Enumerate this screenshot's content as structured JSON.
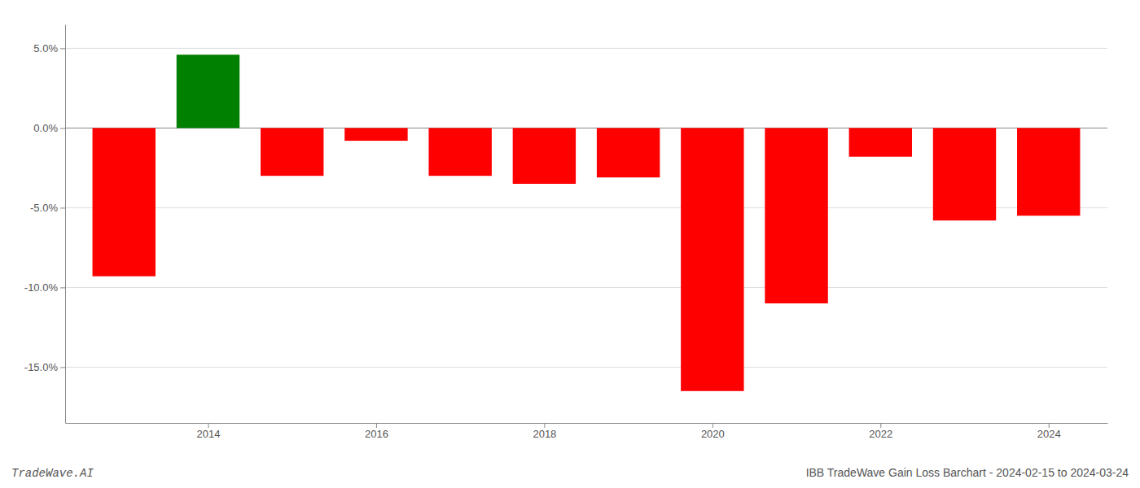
{
  "chart_data": {
    "type": "bar",
    "x": [
      2013,
      2014,
      2015,
      2016,
      2017,
      2018,
      2019,
      2020,
      2021,
      2022,
      2023,
      2024
    ],
    "values": [
      -9.3,
      4.6,
      -3.0,
      -0.8,
      -3.0,
      -3.5,
      -3.1,
      -16.5,
      -11.0,
      -1.8,
      -5.8,
      -5.5
    ],
    "colors": [
      "#ff0000",
      "#008000",
      "#ff0000",
      "#ff0000",
      "#ff0000",
      "#ff0000",
      "#ff0000",
      "#ff0000",
      "#ff0000",
      "#ff0000",
      "#ff0000",
      "#ff0000"
    ],
    "xlim": [
      2012.3,
      2024.7
    ],
    "xticks": [
      2014,
      2016,
      2018,
      2020,
      2022,
      2024
    ],
    "ylim": [
      -18.5,
      6.5
    ],
    "yticks": [
      {
        "value": 5.0,
        "label": "5.0%"
      },
      {
        "value": 0.0,
        "label": "0.0%"
      },
      {
        "value": -5.0,
        "label": "-5.0%"
      },
      {
        "value": -10.0,
        "label": "-10.0%"
      },
      {
        "value": -15.0,
        "label": "-15.0%"
      }
    ],
    "grid": true,
    "annotations": [
      "TradeWave.AI",
      "IBB TradeWave Gain Loss Barchart - 2024-02-15 to 2024-03-24"
    ]
  }
}
